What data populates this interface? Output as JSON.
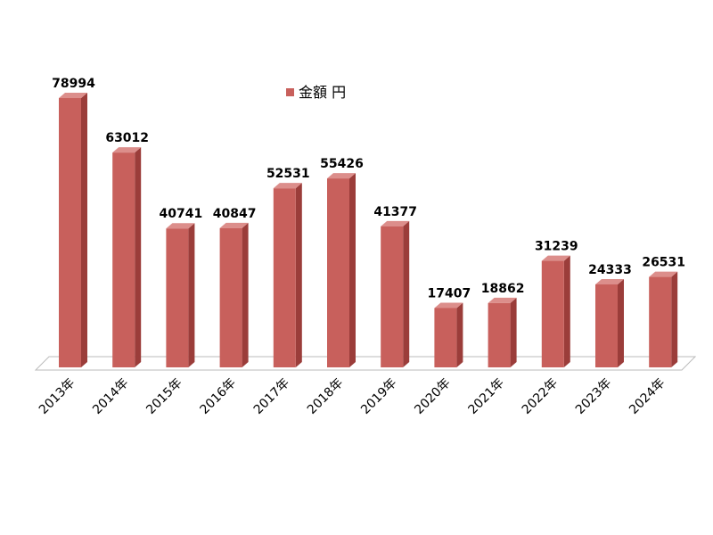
{
  "chart_data": {
    "type": "bar3d",
    "categories": [
      "2013年",
      "2014年",
      "2015年",
      "2016年",
      "2017年",
      "2018年",
      "2019年",
      "2020年",
      "2021年",
      "2022年",
      "2023年",
      "2024年"
    ],
    "series": [
      {
        "name": "金額 円",
        "color": "#c8605c",
        "values": [
          78994,
          63012,
          40741,
          40847,
          52531,
          55426,
          41377,
          17407,
          18862,
          31239,
          24333,
          26531
        ]
      }
    ],
    "legend": "top"
  }
}
